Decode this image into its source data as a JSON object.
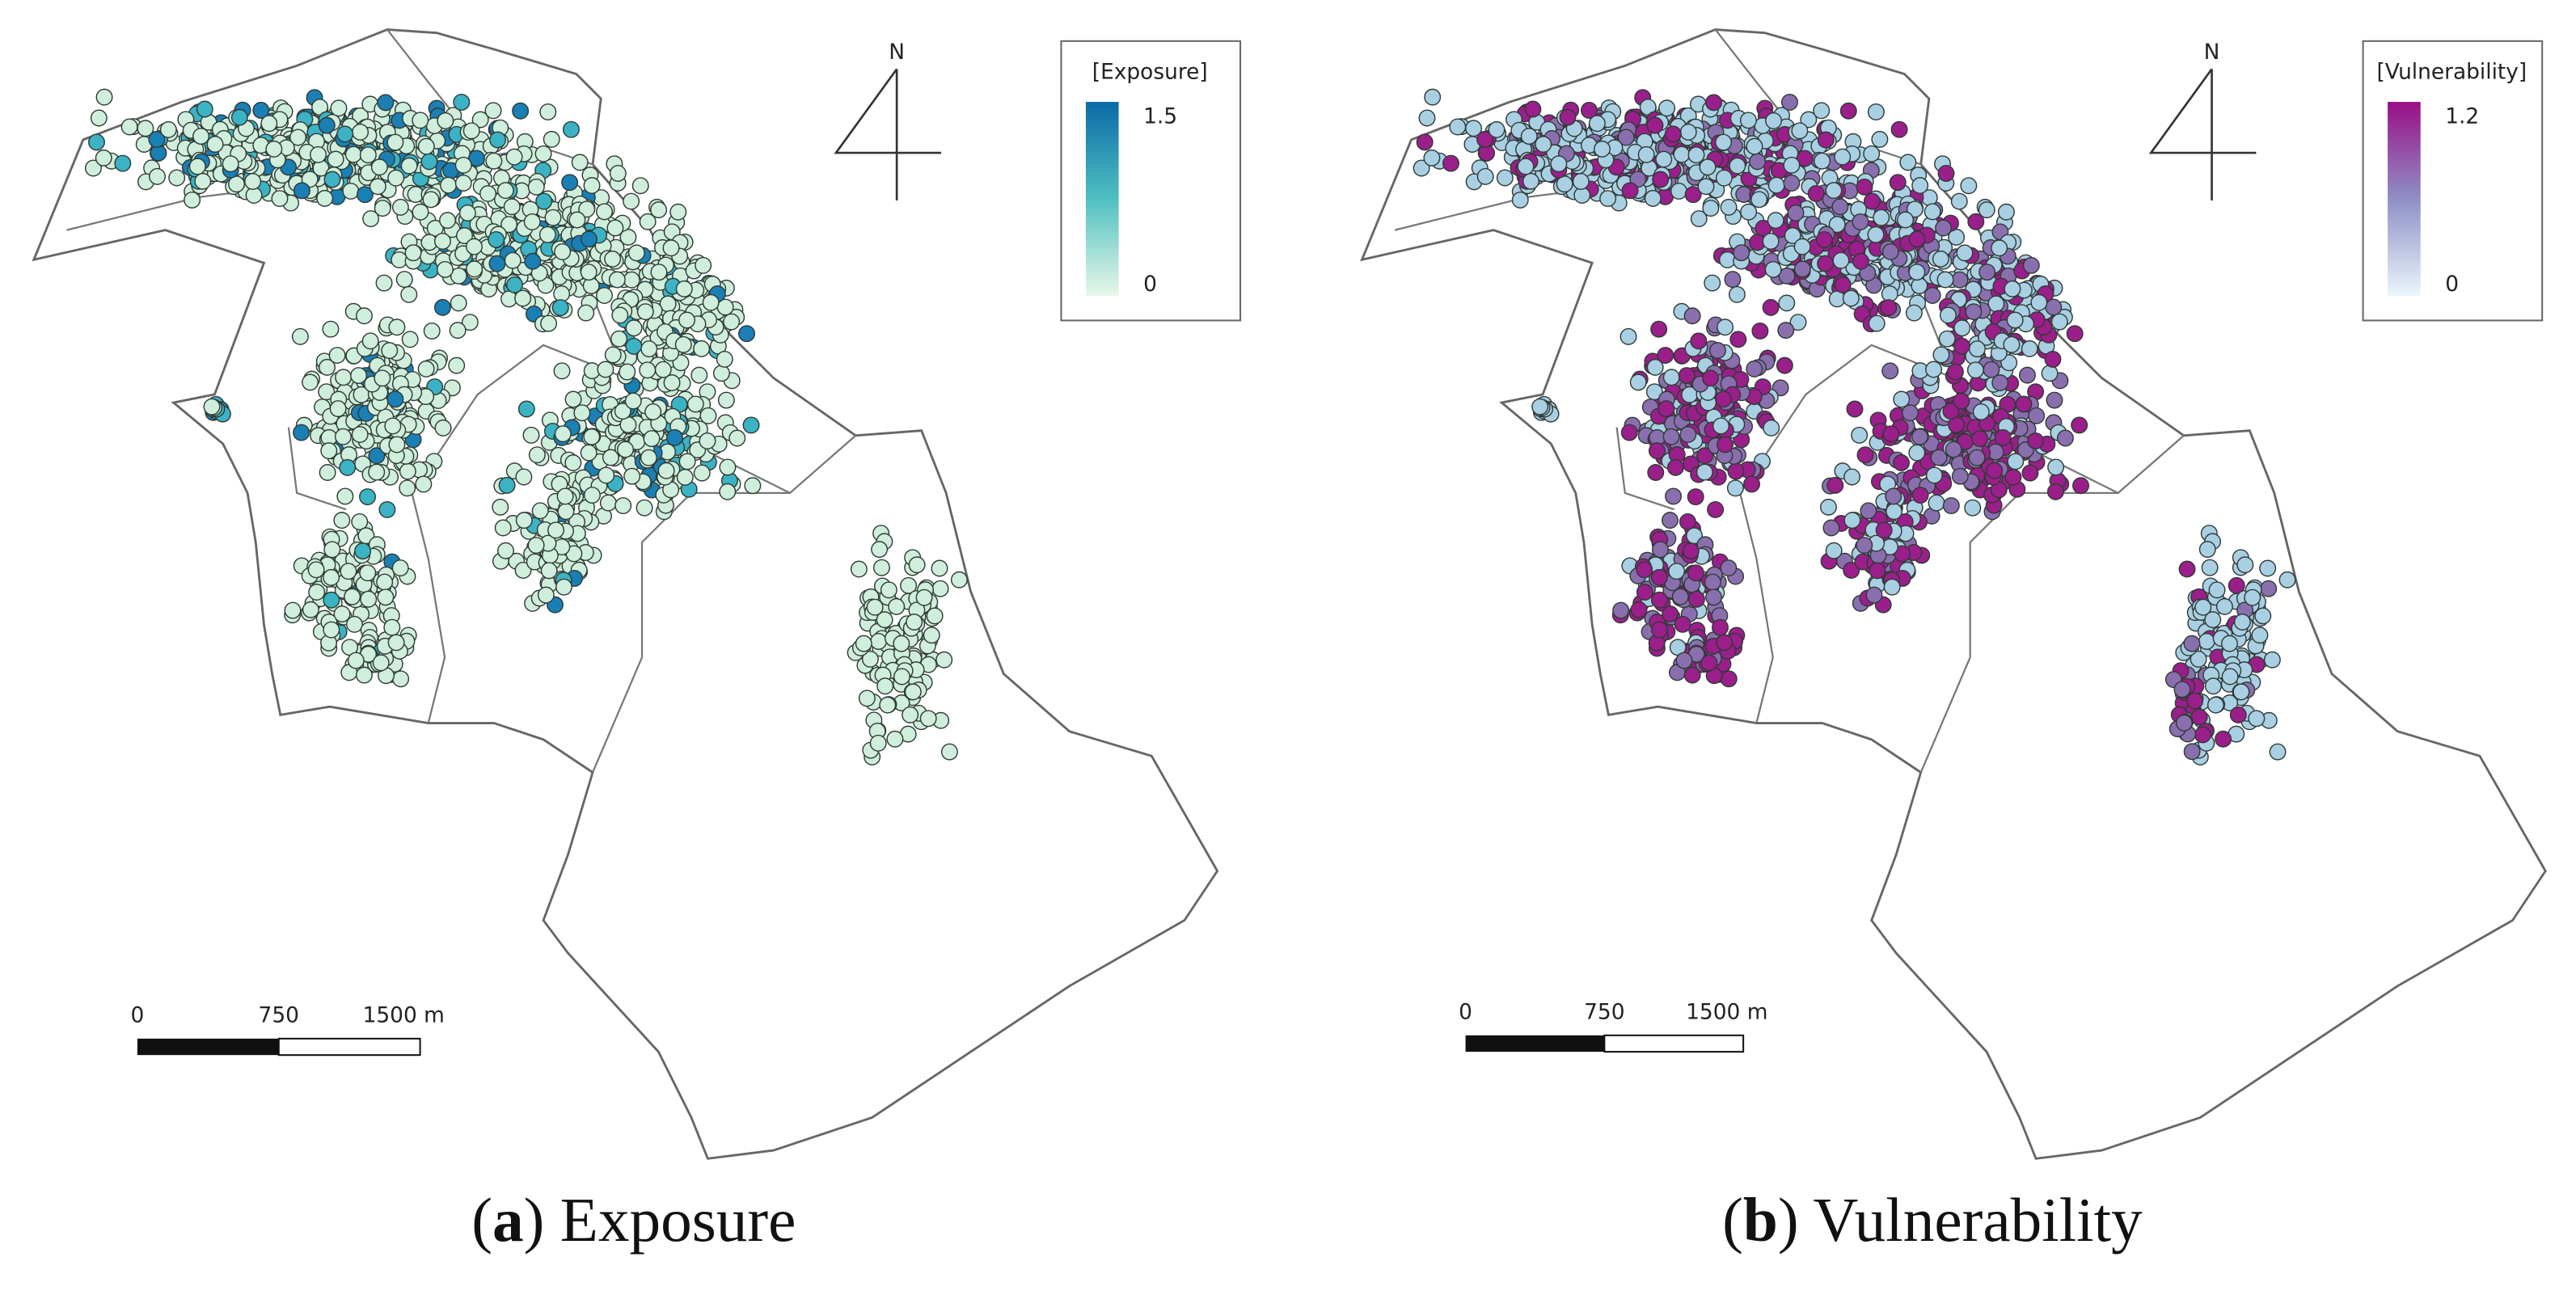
{
  "panels": [
    {
      "north": "N",
      "legend": {
        "title": "[Exposure]",
        "max": 1.5,
        "min": 0
      },
      "scale": {
        "start": 0,
        "mid": 750,
        "end": "1500 m"
      },
      "caption": {
        "prefix": "(",
        "letter": "a",
        "suffix": ") Exposure"
      }
    },
    {
      "north": "N",
      "legend": {
        "title": "[Vulnerability]",
        "max": 1.2,
        "min": 0
      },
      "scale": {
        "start": 0,
        "mid": 750,
        "end": "1500 m"
      },
      "caption": {
        "prefix": "(",
        "letter": "b",
        "suffix": ") Vulnerability"
      }
    }
  ]
}
